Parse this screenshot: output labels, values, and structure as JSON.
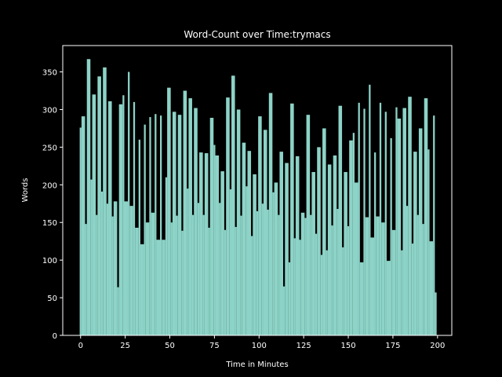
{
  "chart_data": {
    "type": "bar",
    "title": "Word-Count over Time:trymacs",
    "xlabel": "Time in Minutes",
    "ylabel": "Words",
    "color": "#8dd3c7",
    "x": [
      0,
      1,
      3,
      4,
      6,
      7,
      9,
      10,
      12,
      13,
      15,
      16,
      18,
      19,
      21,
      22,
      24,
      25,
      27,
      28,
      30,
      31,
      33,
      34,
      36,
      37,
      39,
      40,
      42,
      43,
      45,
      46,
      48,
      49,
      51,
      52,
      54,
      55,
      57,
      58,
      60,
      61,
      63,
      64,
      66,
      67,
      69,
      70,
      72,
      73,
      75,
      76,
      78,
      79,
      81,
      82,
      84,
      85,
      87,
      88,
      90,
      91,
      93,
      94,
      96,
      97,
      99,
      100,
      102,
      103,
      105,
      106,
      108,
      109,
      111,
      112,
      114,
      115,
      117,
      118,
      120,
      121,
      123,
      124,
      126,
      127,
      129,
      130,
      132,
      133,
      135,
      136,
      138,
      139,
      141,
      142,
      144,
      145,
      147,
      148,
      150,
      151,
      153,
      154,
      156,
      157,
      159,
      160,
      162,
      163,
      165,
      166,
      168,
      169,
      171,
      172,
      174,
      175,
      177,
      178,
      180,
      181,
      183,
      184,
      186,
      187,
      189,
      190,
      192,
      193,
      195,
      196,
      198,
      199
    ],
    "values": [
      276,
      291,
      148,
      367,
      207,
      320,
      160,
      344,
      191,
      356,
      175,
      311,
      158,
      178,
      64,
      307,
      319,
      178,
      350,
      172,
      310,
      143,
      260,
      121,
      280,
      150,
      290,
      163,
      294,
      127,
      292,
      127,
      210,
      329,
      150,
      297,
      159,
      293,
      139,
      325,
      195,
      315,
      160,
      302,
      176,
      243,
      160,
      242,
      143,
      289,
      253,
      239,
      176,
      218,
      140,
      316,
      194,
      345,
      144,
      300,
      159,
      256,
      198,
      245,
      132,
      214,
      165,
      291,
      175,
      273,
      167,
      322,
      190,
      203,
      160,
      244,
      65,
      229,
      97,
      308,
      129,
      238,
      127,
      163,
      156,
      293,
      160,
      217,
      135,
      250,
      107,
      275,
      113,
      227,
      146,
      239,
      168,
      305,
      117,
      217,
      145,
      259,
      269,
      203,
      309,
      97,
      301,
      157,
      333,
      130,
      243,
      158,
      309,
      150,
      297,
      99,
      262,
      140,
      303,
      288,
      113,
      302,
      172,
      317,
      122,
      244,
      160,
      275,
      148,
      315,
      247,
      125,
      292,
      57
    ],
    "xlim": [
      -10,
      208
    ],
    "ylim": [
      0,
      385
    ],
    "xticks": [
      0,
      25,
      50,
      75,
      100,
      125,
      150,
      175,
      200
    ],
    "yticks": [
      0,
      50,
      100,
      150,
      200,
      250,
      300,
      350
    ]
  }
}
